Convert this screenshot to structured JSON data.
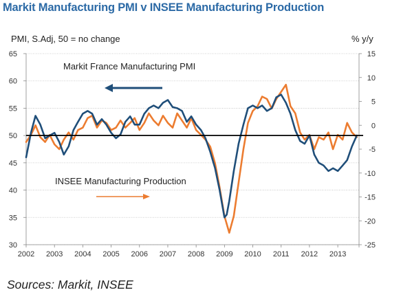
{
  "title": "Markit Manufacturing PMI v INSEE Manufacturing Production",
  "source": "Sources: Markit, INSEE",
  "colors": {
    "pmi": "#1f4e79",
    "insee": "#ec7c30",
    "title": "#2c6aa6",
    "grid": "#bfbfbf",
    "arrow_pmi": "#1f4e79",
    "arrow_insee": "#ec7c30"
  },
  "chart_data": {
    "type": "line",
    "title": "Markit Manufacturing PMI v INSEE Manufacturing Production",
    "left_axis_label": "PMI, S.Adj, 50 = no change",
    "right_axis_label": "% y/y",
    "left_ylim": [
      30,
      65
    ],
    "left_ticks": [
      "65",
      "60",
      "55",
      "50",
      "45",
      "40",
      "35",
      "30"
    ],
    "right_ylim": [
      -25,
      15
    ],
    "right_ticks": [
      "15",
      "10",
      "5",
      "0",
      "-5",
      "-10",
      "-15",
      "-20",
      "-25"
    ],
    "x_ticks": [
      "2002",
      "2003",
      "2004",
      "2005",
      "2006",
      "2007",
      "2008",
      "2009",
      "2010",
      "2011",
      "2012",
      "2013"
    ],
    "grid": true,
    "reference_line": 50,
    "series": [
      {
        "name": "Markit France Manufacturing  PMI",
        "axis": "left",
        "x": [
          2002.0,
          2002.17,
          2002.33,
          2002.5,
          2002.67,
          2002.83,
          2003.0,
          2003.17,
          2003.33,
          2003.5,
          2003.67,
          2003.83,
          2004.0,
          2004.17,
          2004.33,
          2004.5,
          2004.67,
          2004.83,
          2005.0,
          2005.17,
          2005.33,
          2005.5,
          2005.67,
          2005.83,
          2006.0,
          2006.17,
          2006.33,
          2006.5,
          2006.67,
          2006.83,
          2007.0,
          2007.17,
          2007.33,
          2007.5,
          2007.67,
          2007.83,
          2008.0,
          2008.17,
          2008.33,
          2008.5,
          2008.67,
          2008.83,
          2009.0,
          2009.08,
          2009.17,
          2009.33,
          2009.5,
          2009.67,
          2009.83,
          2010.0,
          2010.17,
          2010.33,
          2010.5,
          2010.67,
          2010.83,
          2011.0,
          2011.17,
          2011.33,
          2011.5,
          2011.67,
          2011.83,
          2012.0,
          2012.17,
          2012.33,
          2012.5,
          2012.67,
          2012.83,
          2013.0,
          2013.17,
          2013.33,
          2013.5,
          2013.67
        ],
        "values": [
          46.0,
          50.5,
          53.6,
          52.0,
          49.5,
          50.0,
          50.5,
          48.8,
          46.5,
          48.0,
          51.0,
          52.5,
          54.0,
          54.5,
          54.0,
          52.0,
          53.0,
          52.0,
          50.5,
          49.5,
          50.2,
          52.5,
          53.5,
          52.0,
          52.0,
          54.0,
          55.0,
          55.5,
          55.0,
          56.0,
          56.5,
          55.2,
          55.0,
          54.5,
          52.5,
          53.5,
          52.0,
          51.0,
          49.5,
          47.0,
          44.0,
          40.0,
          35.0,
          35.5,
          38.0,
          43.5,
          48.5,
          52.0,
          55.0,
          55.5,
          55.0,
          55.5,
          54.5,
          55.0,
          57.0,
          57.5,
          56.0,
          54.0,
          51.0,
          49.0,
          48.5,
          50.0,
          46.5,
          45.0,
          44.5,
          43.5,
          44.0,
          43.5,
          44.5,
          45.5,
          48.0,
          50.0
        ]
      },
      {
        "name": "INSEE Manufacturing  Production",
        "axis": "right",
        "x": [
          2002.0,
          2002.17,
          2002.33,
          2002.5,
          2002.67,
          2002.83,
          2003.0,
          2003.17,
          2003.33,
          2003.5,
          2003.67,
          2003.83,
          2004.0,
          2004.17,
          2004.33,
          2004.5,
          2004.67,
          2004.83,
          2005.0,
          2005.17,
          2005.33,
          2005.5,
          2005.67,
          2005.83,
          2006.0,
          2006.17,
          2006.33,
          2006.5,
          2006.67,
          2006.83,
          2007.0,
          2007.17,
          2007.33,
          2007.5,
          2007.67,
          2007.83,
          2008.0,
          2008.17,
          2008.33,
          2008.5,
          2008.67,
          2008.83,
          2009.0,
          2009.17,
          2009.33,
          2009.5,
          2009.67,
          2009.83,
          2010.0,
          2010.17,
          2010.33,
          2010.5,
          2010.67,
          2010.83,
          2011.0,
          2011.17,
          2011.33,
          2011.5,
          2011.67,
          2011.83,
          2012.0,
          2012.17,
          2012.33,
          2012.5,
          2012.67,
          2012.83,
          2013.0,
          2013.17,
          2013.33,
          2013.5,
          2013.67
        ],
        "values": [
          -3.5,
          -2.0,
          0.0,
          -2.5,
          -3.5,
          -2.0,
          -4.0,
          -5.0,
          -3.0,
          -1.5,
          -3.0,
          -1.0,
          -0.5,
          1.5,
          2.0,
          -0.5,
          1.0,
          0.5,
          -1.0,
          -0.5,
          1.0,
          -0.5,
          0.5,
          1.5,
          -1.0,
          0.5,
          2.5,
          1.0,
          0.0,
          2.0,
          0.5,
          -0.5,
          2.5,
          1.0,
          -0.5,
          1.5,
          -1.0,
          -2.0,
          -3.0,
          -4.5,
          -8.0,
          -13.0,
          -19.0,
          -22.5,
          -19.0,
          -12.0,
          -5.0,
          0.5,
          3.0,
          4.0,
          6.0,
          5.5,
          3.5,
          5.5,
          7.0,
          8.5,
          4.0,
          2.5,
          -1.5,
          -3.0,
          -2.0,
          -5.0,
          -2.5,
          -3.0,
          -1.5,
          -5.0,
          -2.0,
          -3.0,
          0.5,
          -1.5,
          -2.5
        ]
      }
    ],
    "annotations": [
      {
        "text": "Markit France Manufacturing  PMI"
      },
      {
        "text": "INSEE Manufacturing  Production"
      }
    ]
  }
}
